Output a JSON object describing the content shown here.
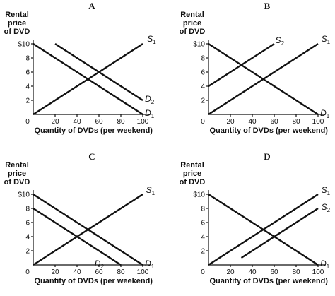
{
  "chart_data": [
    {
      "type": "line",
      "title": "A",
      "ylabel": [
        "Rental",
        "price",
        "of DVD"
      ],
      "xlabel": "Quantity of DVDs (per weekend)",
      "xlim": [
        0,
        110
      ],
      "ylim": [
        0,
        11
      ],
      "x_ticks": [
        0,
        20,
        40,
        60,
        80,
        100
      ],
      "y_ticks": [
        2,
        4,
        6,
        8,
        10
      ],
      "y_tick_labels": [
        "2",
        "4",
        "6",
        "8",
        "$10"
      ],
      "series": [
        {
          "name": "S",
          "sub": "1",
          "points": [
            [
              0,
              0
            ],
            [
              100,
              10
            ]
          ]
        },
        {
          "name": "D",
          "sub": "1",
          "points": [
            [
              0,
              10
            ],
            [
              100,
              0
            ]
          ]
        },
        {
          "name": "D",
          "sub": "2",
          "points": [
            [
              20,
              10
            ],
            [
              100,
              2
            ]
          ]
        }
      ]
    },
    {
      "type": "line",
      "title": "B",
      "ylabel": [
        "Rental",
        "price",
        "of DVD"
      ],
      "xlabel": "Quantity of DVDs (per weekend)",
      "xlim": [
        0,
        110
      ],
      "ylim": [
        0,
        11
      ],
      "x_ticks": [
        0,
        20,
        40,
        60,
        80,
        100
      ],
      "y_ticks": [
        2,
        4,
        6,
        8,
        10
      ],
      "y_tick_labels": [
        "2",
        "4",
        "6",
        "8",
        "$10"
      ],
      "series": [
        {
          "name": "S",
          "sub": "1",
          "points": [
            [
              0,
              0
            ],
            [
              100,
              10
            ]
          ]
        },
        {
          "name": "S",
          "sub": "2",
          "points": [
            [
              0,
              4
            ],
            [
              60,
              10
            ]
          ]
        },
        {
          "name": "D",
          "sub": "1",
          "points": [
            [
              0,
              10
            ],
            [
              100,
              0
            ]
          ]
        }
      ]
    },
    {
      "type": "line",
      "title": "C",
      "ylabel": [
        "Rental",
        "price",
        "of DVD"
      ],
      "xlabel": "Quantity of DVDs (per weekend)",
      "xlim": [
        0,
        110
      ],
      "ylim": [
        0,
        11
      ],
      "x_ticks": [
        0,
        20,
        40,
        60,
        80,
        100
      ],
      "y_ticks": [
        2,
        4,
        6,
        8,
        10
      ],
      "y_tick_labels": [
        "2",
        "4",
        "6",
        "8",
        "$10"
      ],
      "series": [
        {
          "name": "S",
          "sub": "1",
          "points": [
            [
              0,
              0
            ],
            [
              100,
              10
            ]
          ]
        },
        {
          "name": "D",
          "sub": "1",
          "points": [
            [
              0,
              10
            ],
            [
              100,
              0
            ]
          ]
        },
        {
          "name": "D",
          "sub": "2",
          "points": [
            [
              0,
              8
            ],
            [
              80,
              0
            ]
          ]
        }
      ]
    },
    {
      "type": "line",
      "title": "D",
      "ylabel": [
        "Rental",
        "price",
        "of DVD"
      ],
      "xlabel": "Quantity of DVDs (per weekend)",
      "xlim": [
        0,
        110
      ],
      "ylim": [
        0,
        11
      ],
      "x_ticks": [
        0,
        20,
        40,
        60,
        80,
        100
      ],
      "y_ticks": [
        2,
        4,
        6,
        8,
        10
      ],
      "y_tick_labels": [
        "2",
        "4",
        "6",
        "8",
        "$10"
      ],
      "series": [
        {
          "name": "S",
          "sub": "1",
          "points": [
            [
              0,
              0
            ],
            [
              100,
              10
            ]
          ]
        },
        {
          "name": "S",
          "sub": "2",
          "points": [
            [
              30,
              1
            ],
            [
              100,
              8
            ]
          ]
        },
        {
          "name": "D",
          "sub": "1",
          "points": [
            [
              0,
              10
            ],
            [
              100,
              0
            ]
          ]
        }
      ]
    }
  ]
}
